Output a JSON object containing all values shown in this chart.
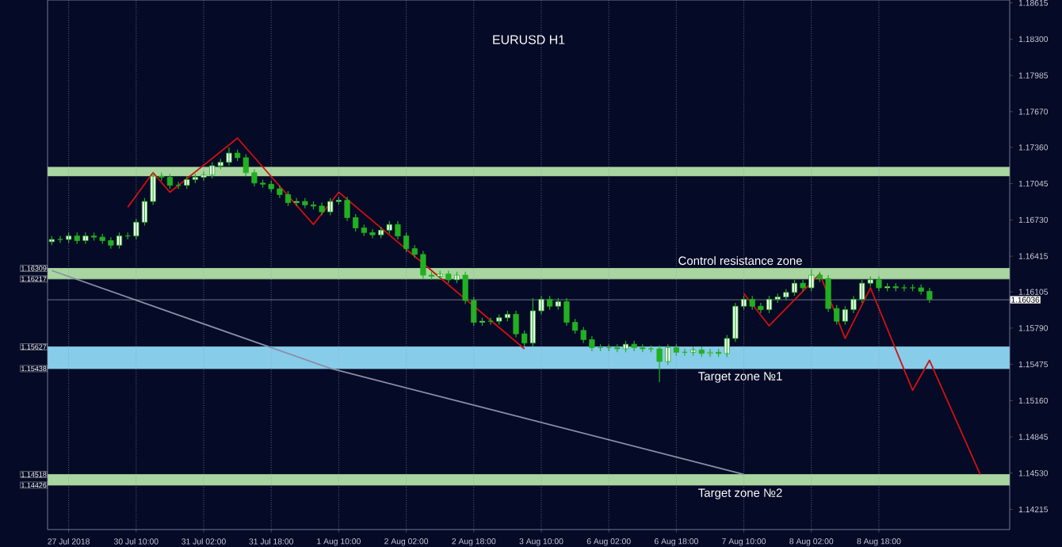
{
  "chart_data": {
    "type": "candlestick",
    "title": "EURUSD H1",
    "ylim": [
      1.1404,
      1.1864
    ],
    "categories": [
      null,
      null,
      "27 Jul 2018",
      null,
      null,
      null,
      null,
      null,
      null,
      null,
      "30 Jul 10:00",
      null,
      null,
      null,
      null,
      null,
      null,
      null,
      "31 Jul 02:00",
      null,
      null,
      null,
      null,
      null,
      null,
      null,
      "31 Jul 18:00",
      null,
      null,
      null,
      null,
      null,
      null,
      null,
      "1 Aug 10:00",
      null,
      null,
      null,
      null,
      null,
      null,
      null,
      "2 Aug 02:00",
      null,
      null,
      null,
      null,
      null,
      null,
      null,
      "2 Aug 18:00",
      null,
      null,
      null,
      null,
      null,
      null,
      null,
      "3 Aug 10:00",
      null,
      null,
      null,
      null,
      null,
      null,
      null,
      "6 Aug 02:00",
      null,
      null,
      null,
      null,
      null,
      null,
      null,
      "6 Aug 18:00",
      null,
      null,
      null,
      null,
      null,
      null,
      null,
      "7 Aug 10:00",
      null,
      null,
      null,
      null,
      null,
      null,
      null,
      "8 Aug 02:00",
      null,
      null,
      null,
      null,
      null,
      null,
      null,
      "8 Aug 18:00",
      null,
      null,
      null,
      null,
      null,
      null,
      null,
      null,
      null,
      null,
      null,
      null,
      null,
      null,
      null
    ],
    "yticks": [
      {
        "value": 1.18615,
        "label": "1.18615"
      },
      {
        "value": 1.183,
        "label": "1.18300"
      },
      {
        "value": 1.17985,
        "label": "1.17985"
      },
      {
        "value": 1.1767,
        "label": "1.17670"
      },
      {
        "value": 1.1736,
        "label": "1.17360"
      },
      {
        "value": 1.17045,
        "label": "1.17045"
      },
      {
        "value": 1.1673,
        "label": "1.16730"
      },
      {
        "value": 1.16415,
        "label": "1.16415"
      },
      {
        "value": 1.16105,
        "label": "1.16105"
      },
      {
        "value": 1.1579,
        "label": "1.15790"
      },
      {
        "value": 1.15475,
        "label": "1.15475"
      },
      {
        "value": 1.1516,
        "label": "1.15160"
      },
      {
        "value": 1.14845,
        "label": "1.14845"
      },
      {
        "value": 1.1453,
        "label": "1.14530"
      },
      {
        "value": 1.14215,
        "label": "1.14215"
      }
    ],
    "grid": "x",
    "series": [
      {
        "type": "candlestick",
        "color": "#22b022",
        "ohlc": [
          [
            1.1654,
            1.1659,
            1.1651,
            1.1656
          ],
          [
            1.1656,
            1.1659,
            1.1653,
            1.1656
          ],
          [
            1.1656,
            1.1662,
            1.1653,
            1.1659
          ],
          [
            1.1659,
            1.1662,
            1.1652,
            1.1655
          ],
          [
            1.1655,
            1.1662,
            1.1652,
            1.1659
          ],
          [
            1.1659,
            1.1662,
            1.1655,
            1.1658
          ],
          [
            1.1658,
            1.1661,
            1.1652,
            1.1655
          ],
          [
            1.1655,
            1.1658,
            1.1648,
            1.1651
          ],
          [
            1.1651,
            1.1662,
            1.1648,
            1.1659
          ],
          [
            1.1659,
            1.1662,
            1.1656,
            1.1659
          ],
          [
            1.1659,
            1.1674,
            1.1656,
            1.1671
          ],
          [
            1.1671,
            1.1692,
            1.1668,
            1.1689
          ],
          [
            1.1689,
            1.1714,
            1.1686,
            1.1711
          ],
          [
            1.1711,
            1.1714,
            1.1707,
            1.171
          ],
          [
            1.171,
            1.1713,
            1.17,
            1.1703
          ],
          [
            1.1703,
            1.1706,
            1.17,
            1.1703
          ],
          [
            1.1703,
            1.1711,
            1.17,
            1.1708
          ],
          [
            1.1708,
            1.1713,
            1.1705,
            1.171
          ],
          [
            1.171,
            1.1715,
            1.1707,
            1.1712
          ],
          [
            1.1712,
            1.1723,
            1.1709,
            1.172
          ],
          [
            1.172,
            1.1726,
            1.1717,
            1.1723
          ],
          [
            1.1723,
            1.1736,
            1.172,
            1.1731
          ],
          [
            1.1731,
            1.1734,
            1.1724,
            1.1727
          ],
          [
            1.1727,
            1.173,
            1.1711,
            1.1714
          ],
          [
            1.1714,
            1.1717,
            1.1702,
            1.1705
          ],
          [
            1.1705,
            1.1708,
            1.1701,
            1.1704
          ],
          [
            1.1704,
            1.1707,
            1.1697,
            1.17
          ],
          [
            1.17,
            1.1703,
            1.1692,
            1.1695
          ],
          [
            1.1695,
            1.1698,
            1.1685,
            1.1688
          ],
          [
            1.1688,
            1.1692,
            1.1685,
            1.1689
          ],
          [
            1.1689,
            1.1692,
            1.1683,
            1.1686
          ],
          [
            1.1686,
            1.1689,
            1.1682,
            1.1685
          ],
          [
            1.1685,
            1.1688,
            1.1677,
            1.168
          ],
          [
            1.168,
            1.1692,
            1.1677,
            1.1689
          ],
          [
            1.1689,
            1.1693,
            1.1686,
            1.169
          ],
          [
            1.169,
            1.1693,
            1.1672,
            1.1675
          ],
          [
            1.1675,
            1.1678,
            1.1663,
            1.1666
          ],
          [
            1.1666,
            1.1669,
            1.1659,
            1.1662
          ],
          [
            1.1662,
            1.1665,
            1.1657,
            1.166
          ],
          [
            1.166,
            1.1667,
            1.1657,
            1.1664
          ],
          [
            1.1664,
            1.1672,
            1.1661,
            1.1669
          ],
          [
            1.1669,
            1.1672,
            1.1656,
            1.1659
          ],
          [
            1.1659,
            1.1662,
            1.1645,
            1.1648
          ],
          [
            1.1648,
            1.1651,
            1.164,
            1.1643
          ],
          [
            1.1643,
            1.1646,
            1.1622,
            1.1625
          ],
          [
            1.1625,
            1.1628,
            1.1621,
            1.1624
          ],
          [
            1.1624,
            1.1629,
            1.1621,
            1.1626
          ],
          [
            1.1626,
            1.1629,
            1.1618,
            1.1621
          ],
          [
            1.1621,
            1.1628,
            1.1618,
            1.1625
          ],
          [
            1.1625,
            1.1628,
            1.16,
            1.1603
          ],
          [
            1.1603,
            1.1606,
            1.1581,
            1.1584
          ],
          [
            1.1584,
            1.1588,
            1.1581,
            1.1585
          ],
          [
            1.1585,
            1.1588,
            1.1582,
            1.1585
          ],
          [
            1.1585,
            1.1591,
            1.1582,
            1.1588
          ],
          [
            1.1588,
            1.1594,
            1.1585,
            1.1591
          ],
          [
            1.1591,
            1.1594,
            1.1571,
            1.1574
          ],
          [
            1.1574,
            1.1577,
            1.1563,
            1.1566
          ],
          [
            1.1566,
            1.1605,
            1.1563,
            1.1594
          ],
          [
            1.1594,
            1.1607,
            1.1591,
            1.1604
          ],
          [
            1.1604,
            1.1607,
            1.1595,
            1.1598
          ],
          [
            1.1598,
            1.1605,
            1.1595,
            1.1602
          ],
          [
            1.1602,
            1.1605,
            1.1581,
            1.1584
          ],
          [
            1.1584,
            1.1587,
            1.1574,
            1.1577
          ],
          [
            1.1577,
            1.158,
            1.1566,
            1.1569
          ],
          [
            1.1569,
            1.1572,
            1.1559,
            1.1562
          ],
          [
            1.1562,
            1.1565,
            1.1559,
            1.1562
          ],
          [
            1.1562,
            1.1565,
            1.1559,
            1.1562
          ],
          [
            1.1562,
            1.1565,
            1.1558,
            1.1561
          ],
          [
            1.1561,
            1.1568,
            1.1558,
            1.1565
          ],
          [
            1.1565,
            1.1568,
            1.1559,
            1.1562
          ],
          [
            1.1562,
            1.1565,
            1.1558,
            1.1561
          ],
          [
            1.1561,
            1.1564,
            1.1558,
            1.1561
          ],
          [
            1.1561,
            1.1564,
            1.1532,
            1.155
          ],
          [
            1.155,
            1.1565,
            1.1547,
            1.1562
          ],
          [
            1.1562,
            1.1565,
            1.1555,
            1.1558
          ],
          [
            1.1558,
            1.1561,
            1.1555,
            1.1558
          ],
          [
            1.1558,
            1.1563,
            1.1555,
            1.156
          ],
          [
            1.156,
            1.1563,
            1.1554,
            1.1557
          ],
          [
            1.1557,
            1.1561,
            1.1554,
            1.1558
          ],
          [
            1.1558,
            1.1561,
            1.1554,
            1.1557
          ],
          [
            1.1557,
            1.1573,
            1.1554,
            1.157
          ],
          [
            1.157,
            1.1601,
            1.1567,
            1.1598
          ],
          [
            1.1598,
            1.1607,
            1.1595,
            1.1604
          ],
          [
            1.1604,
            1.1607,
            1.1595,
            1.1598
          ],
          [
            1.1598,
            1.1601,
            1.1592,
            1.1595
          ],
          [
            1.1595,
            1.1607,
            1.1592,
            1.1604
          ],
          [
            1.1604,
            1.1609,
            1.1601,
            1.1606
          ],
          [
            1.1606,
            1.1613,
            1.1603,
            1.161
          ],
          [
            1.161,
            1.1621,
            1.1607,
            1.1618
          ],
          [
            1.1618,
            1.1621,
            1.1611,
            1.1614
          ],
          [
            1.1614,
            1.163,
            1.1611,
            1.1625
          ],
          [
            1.1625,
            1.1628,
            1.1619,
            1.1622
          ],
          [
            1.1622,
            1.1625,
            1.1593,
            1.1596
          ],
          [
            1.1596,
            1.1599,
            1.1582,
            1.1585
          ],
          [
            1.1585,
            1.1598,
            1.1582,
            1.1595
          ],
          [
            1.1595,
            1.1607,
            1.1592,
            1.1604
          ],
          [
            1.1604,
            1.1621,
            1.1601,
            1.1618
          ],
          [
            1.1618,
            1.1624,
            1.1615,
            1.1621
          ],
          [
            1.1621,
            1.1624,
            1.1611,
            1.1614
          ],
          [
            1.1614,
            1.1618,
            1.1611,
            1.1615
          ],
          [
            1.1615,
            1.1618,
            1.1611,
            1.1614
          ],
          [
            1.1614,
            1.1617,
            1.1611,
            1.1614
          ],
          [
            1.1614,
            1.1617,
            1.1611,
            1.1614
          ],
          [
            1.1614,
            1.1617,
            1.1608,
            1.1611
          ],
          [
            1.1611,
            1.1614,
            1.1601,
            1.1604
          ],
          null,
          null,
          null,
          null,
          null,
          null,
          null,
          null,
          null
        ]
      },
      {
        "type": "line",
        "color": "#d01010",
        "values": [
          null,
          null,
          null,
          null,
          null,
          null,
          null,
          null,
          null,
          1.1684,
          null,
          null,
          1.1714,
          null,
          1.1697,
          null,
          null,
          null,
          null,
          null,
          null,
          null,
          1.1744,
          null,
          null,
          null,
          null,
          null,
          null,
          null,
          null,
          1.1669,
          null,
          null,
          1.1697,
          null,
          null,
          null,
          null,
          null,
          null,
          null,
          null,
          null,
          null,
          null,
          null,
          null,
          null,
          null,
          null,
          null,
          null,
          null,
          null,
          null,
          1.1561,
          null,
          null,
          null,
          null,
          null,
          null,
          null,
          null,
          null,
          null,
          null,
          null,
          null,
          null,
          null,
          null,
          null,
          null,
          null,
          null,
          null,
          null,
          null,
          null,
          null,
          null,
          null,
          null,
          null,
          null,
          null,
          null,
          null,
          null,
          null,
          null,
          null,
          null,
          null,
          null,
          null,
          null,
          null,
          null,
          null,
          null,
          null,
          null,
          null,
          null,
          null,
          null,
          null,
          null,
          null,
          null,
          null
        ]
      },
      {
        "type": "line",
        "color": "#d01010",
        "values": [
          null,
          null,
          null,
          null,
          null,
          null,
          null,
          null,
          null,
          null,
          null,
          null,
          null,
          null,
          null,
          null,
          null,
          null,
          null,
          null,
          null,
          null,
          null,
          null,
          null,
          null,
          null,
          null,
          null,
          null,
          null,
          null,
          null,
          null,
          null,
          null,
          null,
          null,
          null,
          null,
          null,
          null,
          null,
          null,
          null,
          null,
          null,
          null,
          null,
          null,
          null,
          null,
          null,
          null,
          null,
          null,
          null,
          null,
          null,
          null,
          null,
          null,
          null,
          null,
          null,
          null,
          null,
          null,
          null,
          null,
          null,
          null,
          null,
          null,
          null,
          null,
          null,
          null,
          null,
          null,
          null,
          null,
          1.1609,
          null,
          null,
          1.1581,
          null,
          null,
          null,
          null,
          null,
          1.1626,
          null,
          null,
          1.157,
          null,
          null,
          1.1614,
          null,
          null,
          null,
          null,
          1.1525,
          null,
          1.1551,
          null,
          null,
          null,
          null,
          null,
          1.1452,
          null,
          null,
          null
        ]
      },
      {
        "type": "line",
        "color": "#8a8fa8",
        "values": [
          1.1629,
          null,
          null,
          null,
          null,
          null,
          null,
          null,
          null,
          null,
          null,
          null,
          null,
          null,
          null,
          null,
          null,
          null,
          null,
          null,
          null,
          null,
          null,
          null,
          null,
          null,
          null,
          null,
          null,
          null,
          null,
          null,
          null,
          1.1544,
          null,
          null,
          null,
          null,
          null,
          null,
          null,
          null,
          null,
          null,
          null,
          null,
          null,
          null,
          null,
          null,
          null,
          null,
          null,
          null,
          null,
          null,
          null,
          null,
          null,
          null,
          null,
          null,
          null,
          null,
          null,
          null,
          null,
          null,
          null,
          null,
          null,
          null,
          null,
          null,
          null,
          null,
          null,
          null,
          null,
          null,
          null,
          null,
          1.1452,
          null,
          null,
          null,
          null,
          null,
          null,
          null,
          null,
          null,
          null,
          null,
          null,
          null,
          null,
          null,
          null,
          null,
          null,
          null,
          null,
          null,
          null,
          null,
          null,
          null,
          null,
          null,
          null,
          null,
          null,
          null
        ]
      }
    ],
    "bands": [
      {
        "axis": "y",
        "from": 1.1711,
        "to": 1.1719,
        "color": "#a9d6a0"
      },
      {
        "axis": "y",
        "from": 1.16217,
        "to": 1.16309,
        "label": "Control resistance zone",
        "color": "#a9d6a0"
      },
      {
        "axis": "y",
        "from": 1.15438,
        "to": 1.15627,
        "label": "Target zone №1",
        "color": "#87cdea"
      },
      {
        "axis": "y",
        "from": 1.14426,
        "to": 1.14518,
        "label": "Target zone №2",
        "color": "#a9d6a0"
      }
    ],
    "ref_lines": [
      {
        "axis": "y",
        "value": 1.16036,
        "label": "1.16036",
        "color": "#8a8fa8"
      },
      {
        "axis": "y",
        "value": 1.16309,
        "label": "1.16309",
        "color": "#a9d6a0"
      },
      {
        "axis": "y",
        "value": 1.16217,
        "label": "1.16217",
        "color": "#a9d6a0"
      },
      {
        "axis": "y",
        "value": 1.15627,
        "label": "1.15627",
        "color": "#87cdea"
      },
      {
        "axis": "y",
        "value": 1.15438,
        "label": "1.15438",
        "color": "#87cdea"
      },
      {
        "axis": "y",
        "value": 1.14518,
        "label": "1.14518",
        "color": "#a9d6a0"
      },
      {
        "axis": "y",
        "value": 1.14426,
        "label": "1.14426",
        "color": "#a9d6a0"
      }
    ]
  }
}
